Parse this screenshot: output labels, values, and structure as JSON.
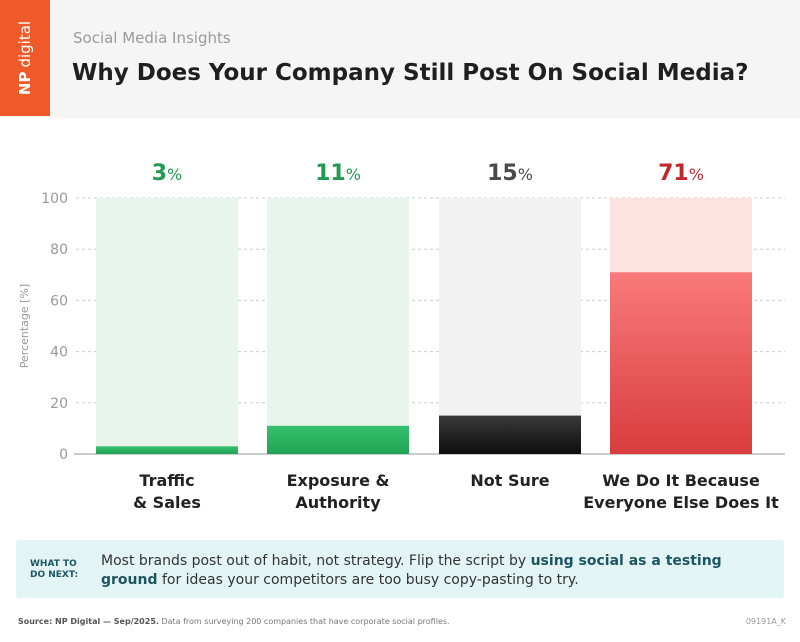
{
  "header": {
    "logo_np": "NP",
    "logo_digital": "digital",
    "subtitle": "Social Media Insights",
    "title": "Why Does Your Company Still Post On Social Media?"
  },
  "chart_data": {
    "type": "bar",
    "title": "Why Does Your Company Still Post On Social Media?",
    "ylabel": "Percentage [%]",
    "xlabel": "",
    "ylim": [
      0,
      100
    ],
    "yticks": [
      0,
      20,
      40,
      60,
      80,
      100
    ],
    "value_suffix": "%",
    "categories": [
      [
        "Traffic",
        "& Sales"
      ],
      [
        "Exposure &",
        "Authority"
      ],
      [
        "Not Sure"
      ],
      [
        "We Do It Because",
        "Everyone Else Does It"
      ]
    ],
    "values": [
      3,
      11,
      15,
      71
    ],
    "colors": {
      "bar_top": [
        "#36c06d",
        "#36c06d",
        "#3a3a3a",
        "#f97a7a"
      ],
      "bar_bottom": [
        "#1fa352",
        "#1fa352",
        "#0d0d0d",
        "#d93d3d"
      ],
      "track": [
        "#e7f5ec",
        "#e7f5ec",
        "#f2f2f2",
        "#fde2e2"
      ],
      "label": [
        "#229a50",
        "#229a50",
        "#4a4a4a",
        "#c0282d"
      ]
    }
  },
  "what_next": {
    "label_line1": "WHAT TO",
    "label_line2": "DO NEXT:",
    "text_before": "Most brands post out of habit, not strategy. Flip the script by ",
    "text_highlight": "using social as a testing ground",
    "text_after": " for ideas your competitors are too busy copy-pasting to try."
  },
  "footer": {
    "source_bold": "Source: NP Digital — Sep/2025.",
    "source_text": " Data from surveying 200 companies that have corporate social profiles.",
    "code": "09191A_K"
  }
}
